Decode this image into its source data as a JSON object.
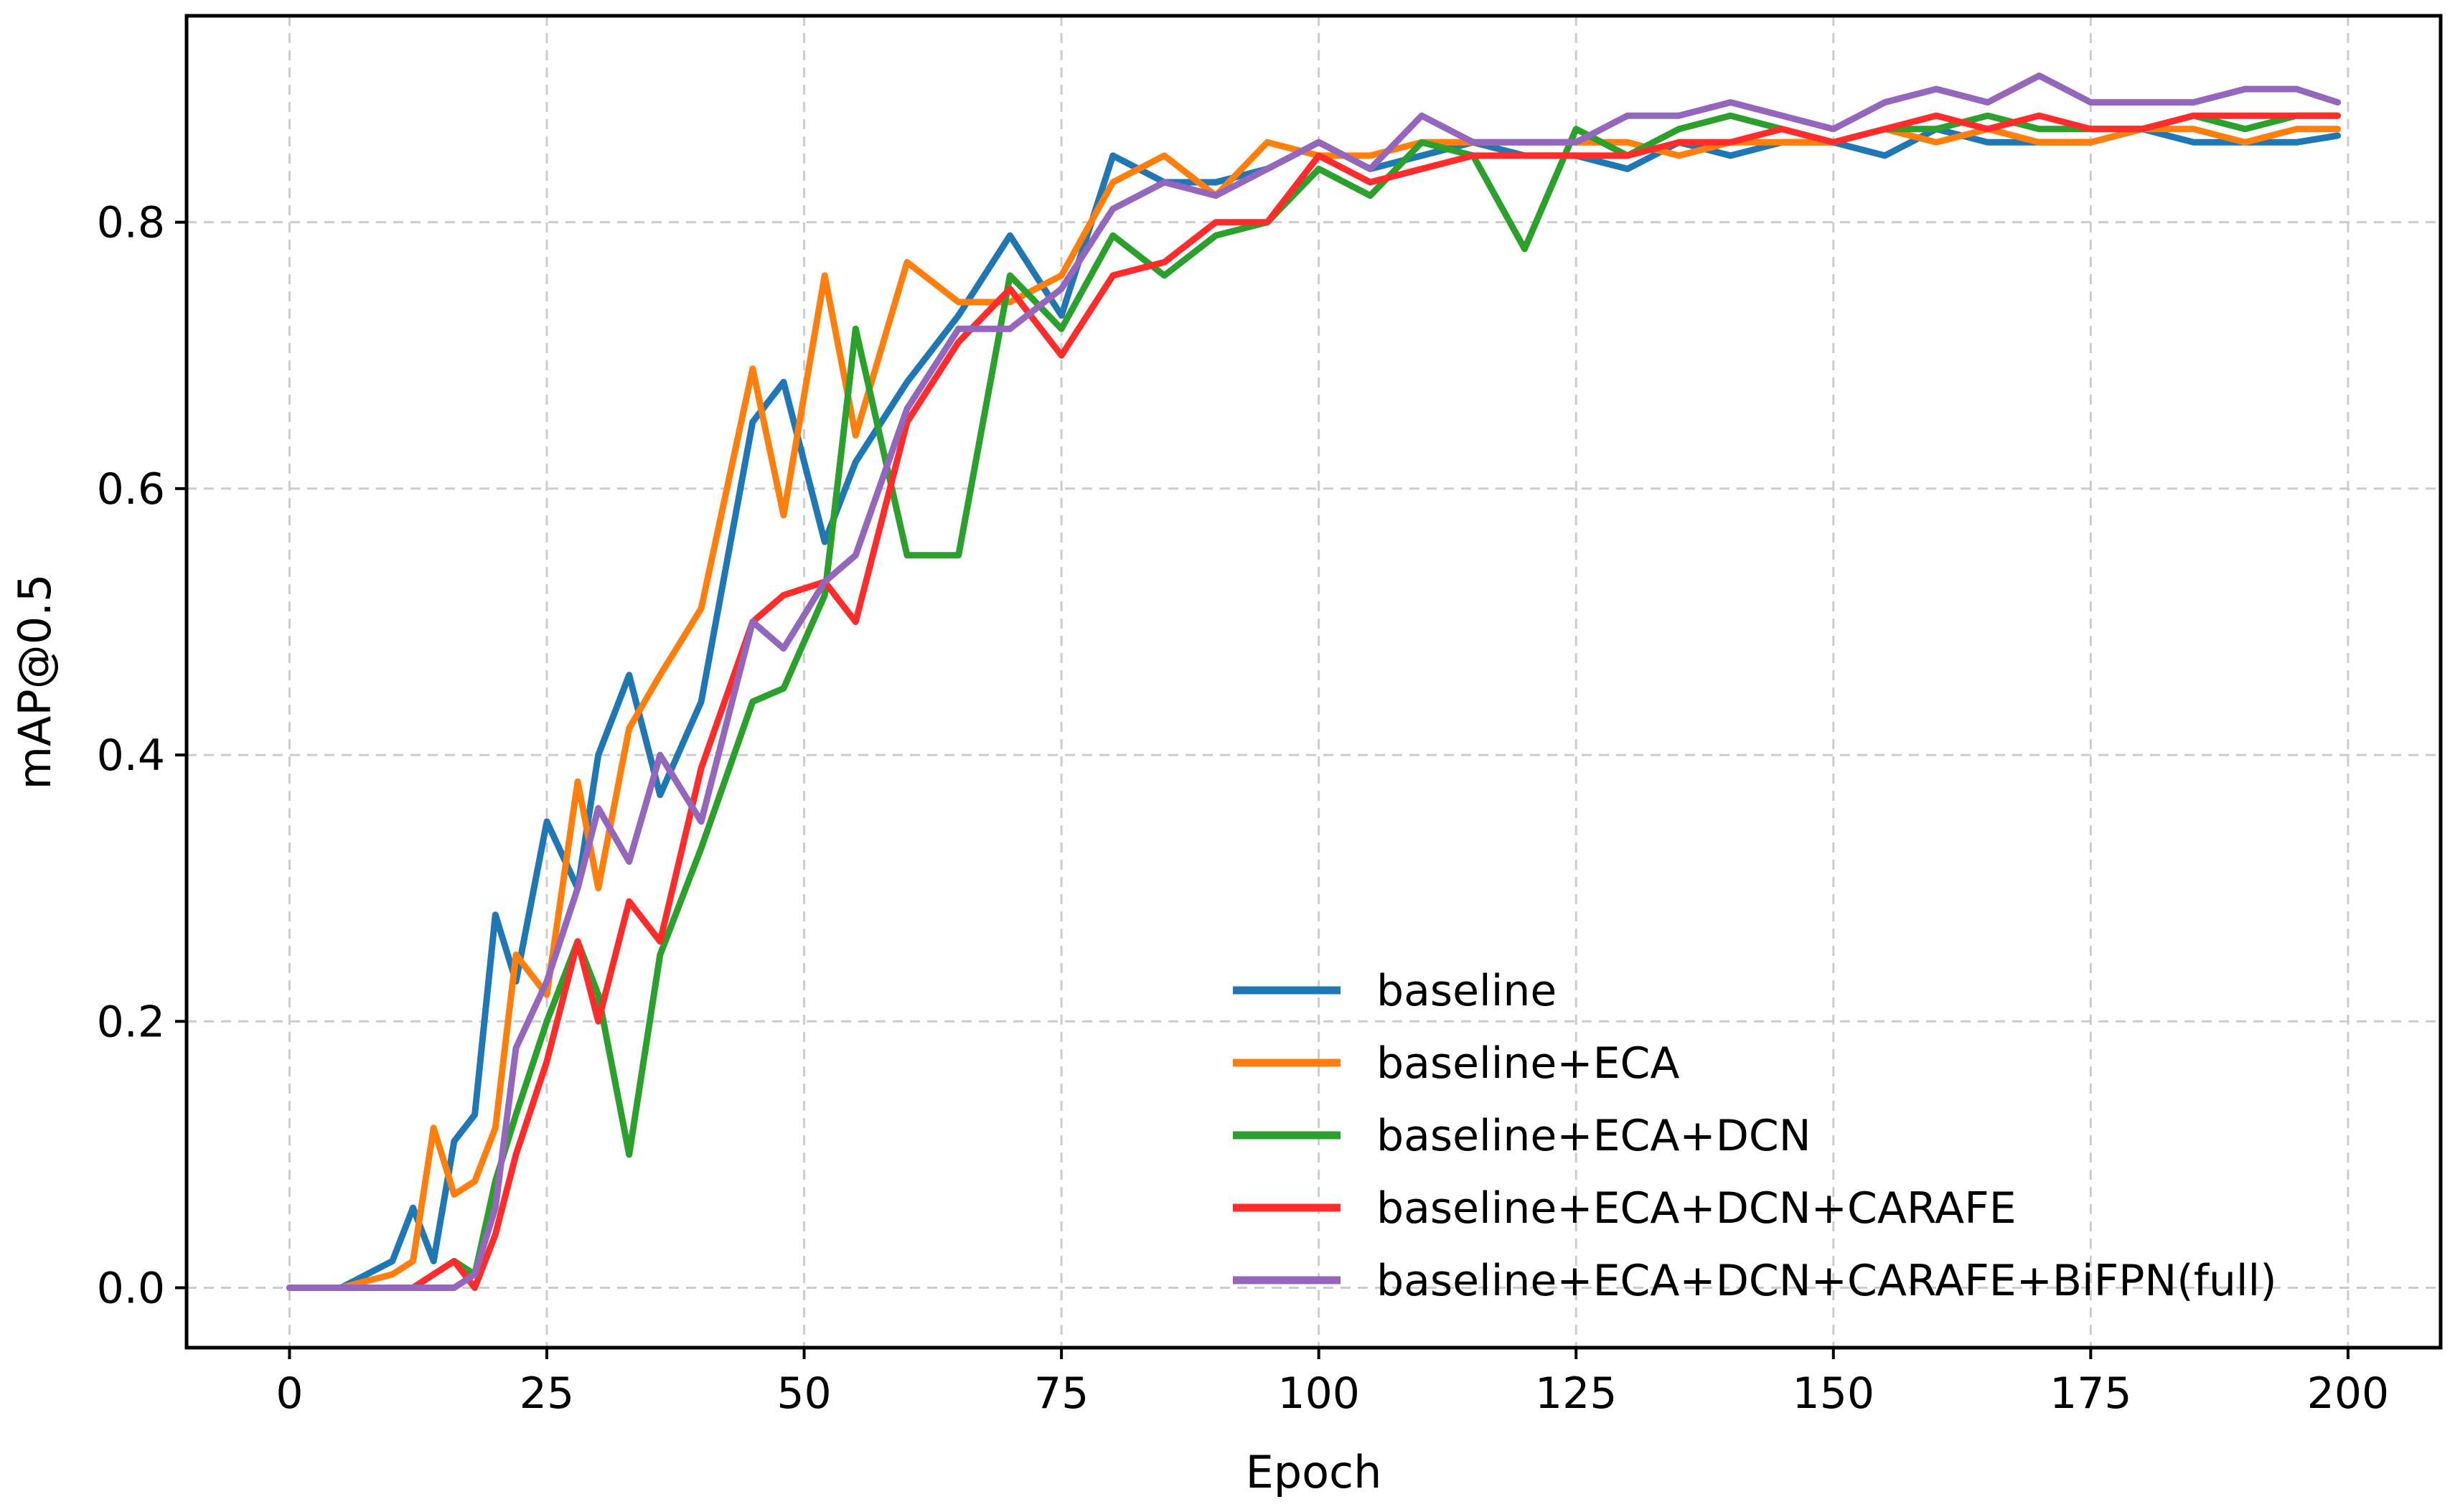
{
  "chart_data": {
    "type": "line",
    "title": "",
    "xlabel": "Epoch",
    "ylabel": "mAP@0.5",
    "xlim": [
      -10,
      209
    ],
    "ylim": [
      -0.045,
      0.955
    ],
    "xticks": [
      0,
      25,
      50,
      75,
      100,
      125,
      150,
      175,
      200
    ],
    "xtick_labels": [
      "0",
      "25",
      "50",
      "75",
      "100",
      "125",
      "150",
      "175",
      "200"
    ],
    "yticks": [
      0.0,
      0.2,
      0.4,
      0.6,
      0.8
    ],
    "ytick_labels": [
      "0.0",
      "0.2",
      "0.4",
      "0.6",
      "0.8"
    ],
    "grid": true,
    "legend_position": "lower-right",
    "x": [
      0,
      5,
      10,
      12,
      14,
      16,
      18,
      20,
      22,
      25,
      28,
      30,
      33,
      36,
      40,
      45,
      48,
      52,
      55,
      60,
      65,
      70,
      75,
      80,
      85,
      90,
      95,
      100,
      105,
      110,
      115,
      120,
      125,
      130,
      135,
      140,
      145,
      150,
      155,
      160,
      165,
      170,
      175,
      180,
      185,
      190,
      195,
      199
    ],
    "series": [
      {
        "name": "baseline",
        "color": "#1f77b4",
        "values": [
          0.0,
          0.0,
          0.02,
          0.06,
          0.02,
          0.11,
          0.13,
          0.28,
          0.23,
          0.35,
          0.3,
          0.4,
          0.46,
          0.37,
          0.44,
          0.65,
          0.68,
          0.56,
          0.62,
          0.68,
          0.73,
          0.79,
          0.73,
          0.85,
          0.83,
          0.83,
          0.84,
          0.86,
          0.84,
          0.85,
          0.86,
          0.85,
          0.85,
          0.84,
          0.86,
          0.85,
          0.86,
          0.86,
          0.85,
          0.87,
          0.86,
          0.86,
          0.86,
          0.87,
          0.86,
          0.86,
          0.86,
          0.865
        ]
      },
      {
        "name": "baseline+ECA",
        "color": "#ff7f0e",
        "values": [
          0.0,
          0.0,
          0.01,
          0.02,
          0.12,
          0.07,
          0.08,
          0.12,
          0.25,
          0.22,
          0.38,
          0.3,
          0.42,
          0.46,
          0.51,
          0.69,
          0.58,
          0.76,
          0.64,
          0.77,
          0.74,
          0.74,
          0.76,
          0.83,
          0.85,
          0.82,
          0.86,
          0.85,
          0.85,
          0.86,
          0.86,
          0.86,
          0.86,
          0.86,
          0.85,
          0.86,
          0.86,
          0.86,
          0.87,
          0.86,
          0.87,
          0.86,
          0.86,
          0.87,
          0.87,
          0.86,
          0.87,
          0.87
        ]
      },
      {
        "name": "baseline+ECA+DCN",
        "color": "#2ca02c",
        "values": [
          0.0,
          0.0,
          0.0,
          0.0,
          0.01,
          0.02,
          0.01,
          0.08,
          0.13,
          0.2,
          0.26,
          0.22,
          0.1,
          0.25,
          0.33,
          0.44,
          0.45,
          0.52,
          0.72,
          0.55,
          0.55,
          0.76,
          0.72,
          0.79,
          0.76,
          0.79,
          0.8,
          0.84,
          0.82,
          0.86,
          0.85,
          0.78,
          0.87,
          0.85,
          0.87,
          0.88,
          0.87,
          0.86,
          0.87,
          0.87,
          0.88,
          0.87,
          0.87,
          0.87,
          0.88,
          0.87,
          0.88,
          0.88
        ]
      },
      {
        "name": "baseline+ECA+DCN+CARAFE",
        "color": "#ff2c2c",
        "values": [
          0.0,
          0.0,
          0.0,
          0.0,
          0.01,
          0.02,
          0.0,
          0.04,
          0.1,
          0.17,
          0.26,
          0.2,
          0.29,
          0.26,
          0.39,
          0.5,
          0.52,
          0.53,
          0.5,
          0.65,
          0.71,
          0.75,
          0.7,
          0.76,
          0.77,
          0.8,
          0.8,
          0.85,
          0.83,
          0.84,
          0.85,
          0.85,
          0.85,
          0.85,
          0.86,
          0.86,
          0.87,
          0.86,
          0.87,
          0.88,
          0.87,
          0.88,
          0.87,
          0.87,
          0.88,
          0.88,
          0.88,
          0.88
        ]
      },
      {
        "name": "baseline+ECA+DCN+CARAFE+BiFPN(full)",
        "color": "#9467bd",
        "values": [
          0.0,
          0.0,
          0.0,
          0.0,
          0.0,
          0.0,
          0.01,
          0.06,
          0.18,
          0.23,
          0.3,
          0.36,
          0.32,
          0.4,
          0.35,
          0.5,
          0.48,
          0.53,
          0.55,
          0.66,
          0.72,
          0.72,
          0.75,
          0.81,
          0.83,
          0.82,
          0.84,
          0.86,
          0.84,
          0.88,
          0.86,
          0.86,
          0.86,
          0.88,
          0.88,
          0.89,
          0.88,
          0.87,
          0.89,
          0.9,
          0.89,
          0.91,
          0.89,
          0.89,
          0.89,
          0.9,
          0.9,
          0.89
        ]
      }
    ]
  }
}
